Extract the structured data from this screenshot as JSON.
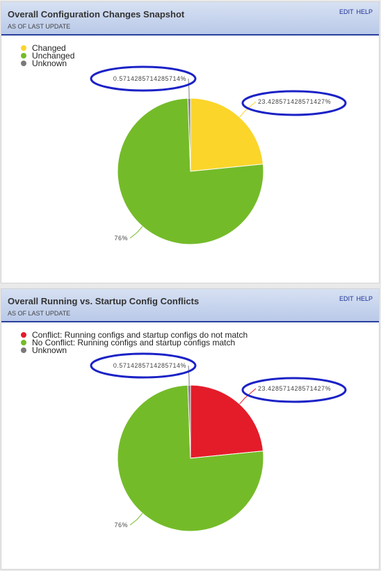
{
  "panels": [
    {
      "title": "Overall Configuration Changes Snapshot",
      "subtitle": "AS OF LAST UPDATE",
      "actions": [
        "EDIT",
        "HELP"
      ],
      "legend": [
        {
          "label": "Changed",
          "color": "#fbd52a"
        },
        {
          "label": "Unchanged",
          "color": "#74bb29"
        },
        {
          "label": "Unknown",
          "color": "#7a7a7a"
        }
      ],
      "chart_data": {
        "type": "pie",
        "categories": [
          "Changed",
          "Unchanged",
          "Unknown"
        ],
        "values": [
          23.428571428571427,
          76,
          0.5714285714285714
        ],
        "data_labels": [
          "23.428571428571427%",
          "76%",
          "0.5714285714285714%"
        ],
        "colors": [
          "#fbd52a",
          "#74bb29",
          "#7a7a7a"
        ],
        "legend_position": "top-left"
      }
    },
    {
      "title": "Overall Running vs. Startup Config Conflicts",
      "subtitle": "AS OF LAST UPDATE",
      "actions": [
        "EDIT",
        "HELP"
      ],
      "legend": [
        {
          "label": "Conflict: Running configs and startup configs do not match",
          "color": "#e41c2a"
        },
        {
          "label": "No Conflict: Running configs and startup configs match",
          "color": "#74bb29"
        },
        {
          "label": "Unknown",
          "color": "#7a7a7a"
        }
      ],
      "chart_data": {
        "type": "pie",
        "categories": [
          "Conflict: Running configs and startup configs do not match",
          "No Conflict: Running configs and startup configs match",
          "Unknown"
        ],
        "values": [
          23.428571428571427,
          76,
          0.5714285714285714
        ],
        "data_labels": [
          "23.428571428571427%",
          "76%",
          "0.5714285714285714%"
        ],
        "colors": [
          "#e41c2a",
          "#74bb29",
          "#7a7a7a"
        ],
        "legend_position": "top-left"
      }
    }
  ],
  "highlight_color": "#1b22c6"
}
